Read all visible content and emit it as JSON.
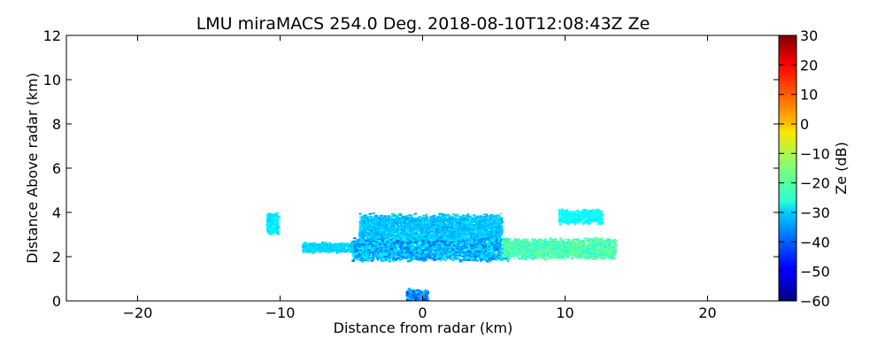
{
  "chart_data": {
    "type": "heatmap",
    "title": "LMU miraMACS 254.0 Deg. 2018-08-10T12:08:43Z  Ze",
    "xlabel": "Distance from radar (km)",
    "ylabel": "Distance Above radar  (km)",
    "xlim": [
      -25,
      25
    ],
    "ylim": [
      0,
      12
    ],
    "xticks": [
      -20,
      -10,
      0,
      10,
      20
    ],
    "xtick_labels": [
      "−20",
      "−10",
      "0",
      "10",
      "20"
    ],
    "yticks": [
      0,
      2,
      4,
      6,
      8,
      10,
      12
    ],
    "ytick_labels": [
      "0",
      "2",
      "4",
      "6",
      "8",
      "10",
      "12"
    ],
    "colorbar": {
      "label": "Ze (dB)",
      "range": [
        -60,
        30
      ],
      "ticks": [
        -60,
        -50,
        -40,
        -30,
        -20,
        -10,
        0,
        10,
        20,
        30
      ],
      "tick_labels": [
        "−60",
        "−50",
        "−40",
        "−30",
        "−20",
        "−10",
        "0",
        "10",
        "20",
        "30"
      ],
      "colormap": "jet"
    },
    "echo_regions": [
      {
        "name": "upper-cloud-layer",
        "x": [
          -4.5,
          5.5
        ],
        "y": [
          2.6,
          4.0
        ],
        "ze_range": [
          -35,
          -28
        ]
      },
      {
        "name": "main-band",
        "x": [
          -5.0,
          6.0
        ],
        "y": [
          1.8,
          2.9
        ],
        "ze_range": [
          -40,
          -25
        ]
      },
      {
        "name": "eastern-band",
        "x": [
          5.5,
          13.5
        ],
        "y": [
          1.9,
          2.9
        ],
        "ze_range": [
          -24,
          -15
        ]
      },
      {
        "name": "western-fragments",
        "x": [
          -8.5,
          -5.0
        ],
        "y": [
          2.2,
          2.7
        ],
        "ze_range": [
          -32,
          -28
        ]
      },
      {
        "name": "west-isolated",
        "x": [
          -11.0,
          -10.2
        ],
        "y": [
          3.0,
          4.1
        ],
        "ze_range": [
          -30,
          -26
        ]
      },
      {
        "name": "near-radar-speckle",
        "x": [
          -1.2,
          0.3
        ],
        "y": [
          0.0,
          0.6
        ],
        "ze_range": [
          -45,
          -28
        ]
      },
      {
        "name": "east-isolated",
        "x": [
          9.5,
          12.5
        ],
        "y": [
          3.5,
          4.2
        ],
        "ze_range": [
          -28,
          -24
        ]
      }
    ]
  }
}
